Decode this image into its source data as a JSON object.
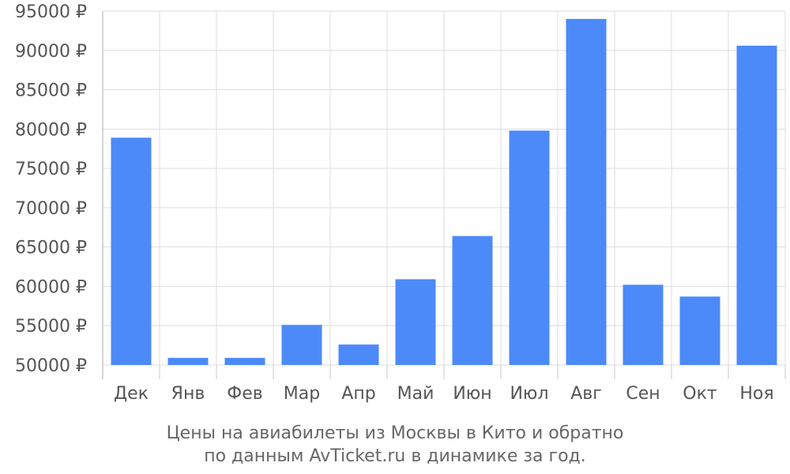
{
  "chart_data": {
    "type": "bar",
    "title": "Цены на авиабилеты из Москвы в Кито и обратно",
    "subtitle": "по данным AvTicket.ru в динамике за год.",
    "xlabel": "",
    "ylabel": "",
    "categories": [
      "Дек",
      "Янв",
      "Фев",
      "Мар",
      "Апр",
      "Май",
      "Июн",
      "Июл",
      "Авг",
      "Сен",
      "Окт",
      "Ноя"
    ],
    "values": [
      78900,
      50900,
      50900,
      55100,
      52600,
      60900,
      66400,
      79800,
      94000,
      60200,
      58700,
      90600
    ],
    "ylim": [
      50000,
      95000
    ],
    "yticks": [
      50000,
      55000,
      60000,
      65000,
      70000,
      75000,
      80000,
      85000,
      90000,
      95000
    ],
    "ytick_labels": [
      "50000 ₽",
      "55000 ₽",
      "60000 ₽",
      "65000 ₽",
      "70000 ₽",
      "75000 ₽",
      "80000 ₽",
      "85000 ₽",
      "90000 ₽",
      "95000 ₽"
    ],
    "grid": true,
    "legend": "none",
    "colors": {
      "bar": "#4d8af9",
      "grid": "#dddddd",
      "axis": "#c8c8c8"
    }
  }
}
